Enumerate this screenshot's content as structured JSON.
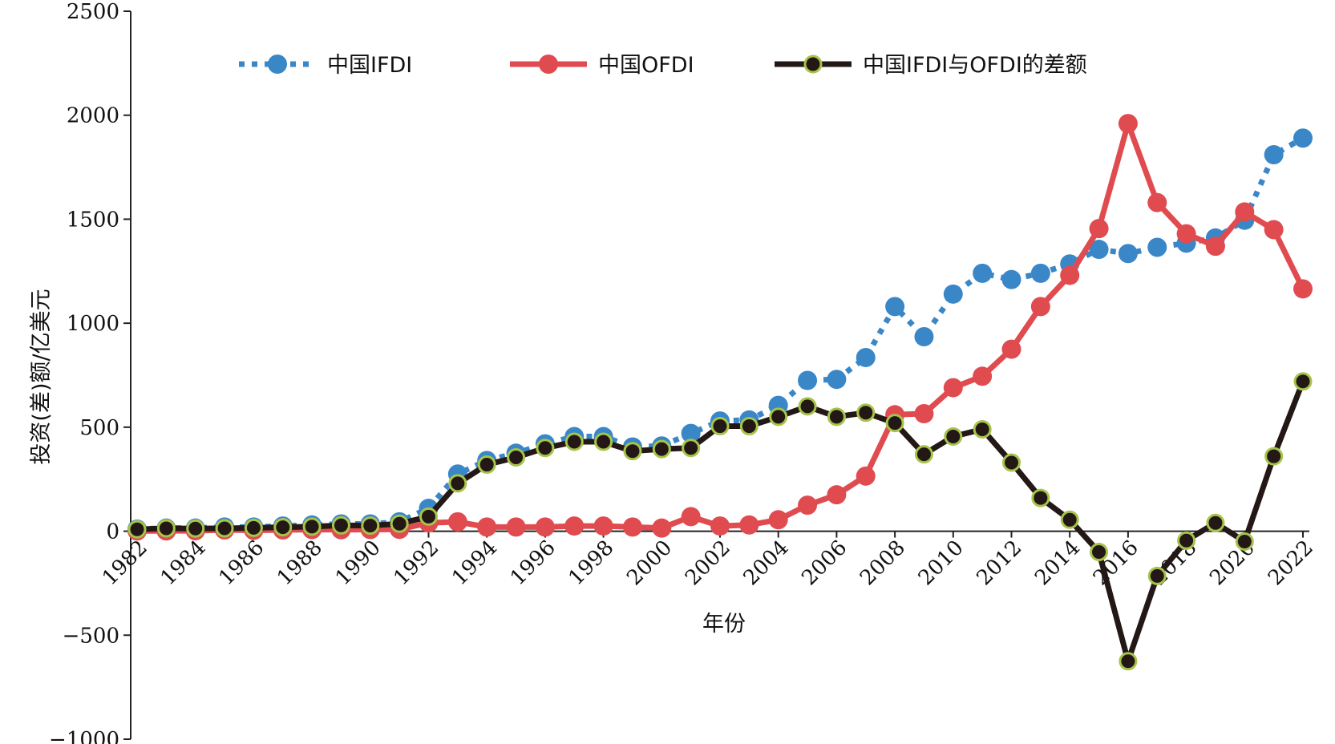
{
  "chart_data": {
    "type": "line",
    "title": "",
    "xlabel": "年份",
    "ylabel": "投资(差)额/亿美元",
    "ylim": [
      -1000,
      2500
    ],
    "yticks": [
      -1000,
      -500,
      0,
      500,
      1000,
      1500,
      2000,
      2500
    ],
    "xlim": [
      1982,
      2022
    ],
    "xticks": [
      1982,
      1984,
      1986,
      1988,
      1990,
      1992,
      1994,
      1996,
      1998,
      2000,
      2002,
      2004,
      2006,
      2008,
      2010,
      2012,
      2014,
      2016,
      2018,
      2020,
      2022
    ],
    "legend_position": "top",
    "grid": false,
    "x": [
      1982,
      1983,
      1984,
      1985,
      1986,
      1987,
      1988,
      1989,
      1990,
      1991,
      1992,
      1993,
      1994,
      1995,
      1996,
      1997,
      1998,
      1999,
      2000,
      2001,
      2002,
      2003,
      2004,
      2005,
      2006,
      2007,
      2008,
      2009,
      2010,
      2011,
      2012,
      2013,
      2014,
      2015,
      2016,
      2017,
      2018,
      2019,
      2020,
      2021,
      2022
    ],
    "series": [
      {
        "name": "中国IFDI",
        "color": "#3a87c8",
        "style": "dotted",
        "values": [
          10,
          15,
          15,
          20,
          20,
          25,
          30,
          35,
          35,
          45,
          110,
          275,
          340,
          375,
          420,
          455,
          455,
          405,
          410,
          470,
          530,
          535,
          605,
          725,
          730,
          835,
          1080,
          935,
          1140,
          1240,
          1210,
          1240,
          1285,
          1355,
          1335,
          1365,
          1385,
          1410,
          1495,
          1810,
          1890
        ]
      },
      {
        "name": "中国OFDI",
        "color": "#e04b50",
        "style": "solid",
        "values": [
          1,
          1,
          2,
          6,
          4,
          6,
          8,
          7,
          8,
          9,
          40,
          45,
          20,
          20,
          20,
          25,
          25,
          20,
          15,
          70,
          25,
          30,
          55,
          125,
          175,
          265,
          560,
          565,
          690,
          745,
          875,
          1080,
          1230,
          1455,
          1960,
          1580,
          1430,
          1370,
          1535,
          1450,
          1165
        ]
      },
      {
        "name": "中国IFDI与OFDI的差额",
        "color": "#231815",
        "marker_edge": "#a6c449",
        "style": "solid",
        "values": [
          9,
          14,
          13,
          14,
          16,
          19,
          22,
          28,
          27,
          36,
          70,
          230,
          320,
          355,
          400,
          430,
          430,
          385,
          395,
          400,
          505,
          505,
          550,
          600,
          550,
          570,
          520,
          370,
          455,
          490,
          330,
          160,
          55,
          -100,
          -625,
          -215,
          -45,
          40,
          -50,
          360,
          720
        ]
      }
    ]
  }
}
